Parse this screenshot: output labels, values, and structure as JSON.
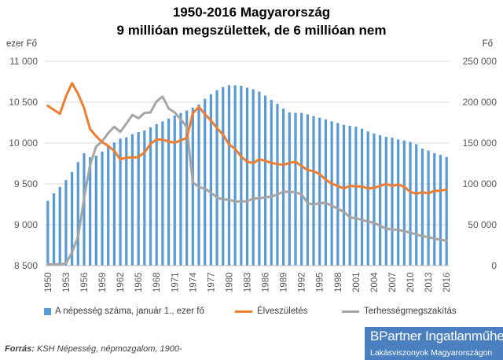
{
  "title_line1": "1950-2016 Magyarország",
  "title_line2": "9 millióan megszülettek, de 6 millióan nem",
  "unit_left": "ezer Fő",
  "unit_right": "Fő",
  "source_label": "Forrás:",
  "source_text": " KSH Népesség, népmozgalom, 1900-",
  "brand": {
    "name_bold": "BPartner",
    "name_rest": " Ingatlanműhely",
    "tagline": "Lakásviszonyok Magyarországon"
  },
  "colors": {
    "population": "#5B9BD5",
    "births": "#ED7D31",
    "abortions": "#A5A5A5"
  },
  "chart_data": {
    "type": "bar",
    "title": "1950-2016 Magyarország 9 millióan megszülettek, de 6 millióan nem",
    "x": [
      1950,
      1951,
      1952,
      1953,
      1954,
      1955,
      1956,
      1957,
      1958,
      1959,
      1960,
      1961,
      1962,
      1963,
      1964,
      1965,
      1966,
      1967,
      1968,
      1969,
      1970,
      1971,
      1972,
      1973,
      1974,
      1975,
      1976,
      1977,
      1978,
      1979,
      1980,
      1981,
      1982,
      1983,
      1984,
      1985,
      1986,
      1987,
      1988,
      1989,
      1990,
      1991,
      1992,
      1993,
      1994,
      1995,
      1996,
      1997,
      1998,
      1999,
      2000,
      2001,
      2002,
      2003,
      2004,
      2005,
      2006,
      2007,
      2008,
      2009,
      2010,
      2011,
      2012,
      2013,
      2014,
      2015,
      2016
    ],
    "x_tick_labels": [
      "1950",
      "1953",
      "1956",
      "1959",
      "1962",
      "1965",
      "1968",
      "1971",
      "1974",
      "1977",
      "1980",
      "1983",
      "1986",
      "1989",
      "1992",
      "1995",
      "1998",
      "2001",
      "2004",
      "2007",
      "2010",
      "2013",
      "2016"
    ],
    "left_axis": {
      "label": "ezer Fő",
      "ylim": [
        8500,
        11000
      ],
      "ticks": [
        "8 500",
        "9 000",
        "9 500",
        "10 000",
        "10 500",
        "11 000"
      ],
      "tick_values": [
        8500,
        9000,
        9500,
        10000,
        10500,
        11000
      ]
    },
    "right_axis": {
      "label": "Fő",
      "ylim": [
        0,
        250000
      ],
      "ticks": [
        "0",
        "50 000",
        "100 000",
        "150 000",
        "200 000",
        "250 000"
      ],
      "tick_values": [
        0,
        50000,
        100000,
        150000,
        200000,
        250000
      ]
    },
    "legend_position": "bottom",
    "series": [
      {
        "name": "A népesség száma, január 1., ezer fő",
        "type": "bar",
        "axis": "left",
        "values": [
          9293,
          9384,
          9463,
          9546,
          9645,
          9767,
          9876,
          9826,
          9846,
          9896,
          9961,
          10007,
          10055,
          10071,
          10108,
          10134,
          10154,
          10192,
          10231,
          10265,
          10300,
          10336,
          10368,
          10398,
          10431,
          10471,
          10541,
          10597,
          10646,
          10685,
          10709,
          10707,
          10700,
          10678,
          10658,
          10630,
          10580,
          10530,
          10480,
          10421,
          10375,
          10370,
          10369,
          10350,
          10330,
          10310,
          10290,
          10267,
          10245,
          10223,
          10211,
          10200,
          10175,
          10142,
          10117,
          10098,
          10077,
          10066,
          10045,
          10031,
          10014,
          9986,
          9932,
          9909,
          9877,
          9856,
          9830
        ]
      },
      {
        "name": "Élveszületés",
        "type": "line",
        "axis": "right",
        "values": [
          195600,
          190600,
          185800,
          206900,
          223300,
          210400,
          192800,
          167200,
          158400,
          151200,
          146500,
          140400,
          130100,
          132300,
          132100,
          133000,
          138500,
          148900,
          154400,
          154300,
          151800,
          150600,
          153300,
          156200,
          186300,
          194200,
          185400,
          177600,
          168200,
          160400,
          148700,
          142900,
          133600,
          127300,
          125400,
          130200,
          128200,
          125800,
          124300,
          123300,
          125700,
          127200,
          121700,
          117000,
          115600,
          112000,
          105300,
          100400,
          97300,
          94600,
          97600,
          97000,
          96800,
          94600,
          95100,
          97500,
          99900,
          97600,
          99100,
          96400,
          90300,
          88000,
          89800,
          88600,
          91500,
          91700,
          93100
        ]
      },
      {
        "name": "Terhességmegszakítás",
        "type": "line",
        "axis": "right",
        "values": [
          1700,
          1700,
          1700,
          2800,
          16300,
          35400,
          82500,
          123400,
          145600,
          152200,
          162200,
          170000,
          163700,
          173800,
          184400,
          180300,
          186800,
          187500,
          201100,
          206800,
          192300,
          187400,
          179000,
          169700,
          102000,
          96200,
          94300,
          89100,
          83500,
          81000,
          80800,
          78400,
          78600,
          78700,
          82200,
          82400,
          83600,
          84500,
          87100,
          90500,
          90400,
          89900,
          87100,
          76600,
          74500,
          76800,
          76600,
          73700,
          69600,
          65900,
          59200,
          57900,
          56000,
          53900,
          52400,
          48700,
          45500,
          44000,
          43900,
          42000,
          40500,
          38200,
          36100,
          35100,
          33000,
          31800,
          30400
        ]
      }
    ]
  },
  "legend": {
    "population": "A népesség száma, január 1., ezer fő",
    "births": "Élveszületés",
    "abortions": "Terhességmegszakítás"
  }
}
